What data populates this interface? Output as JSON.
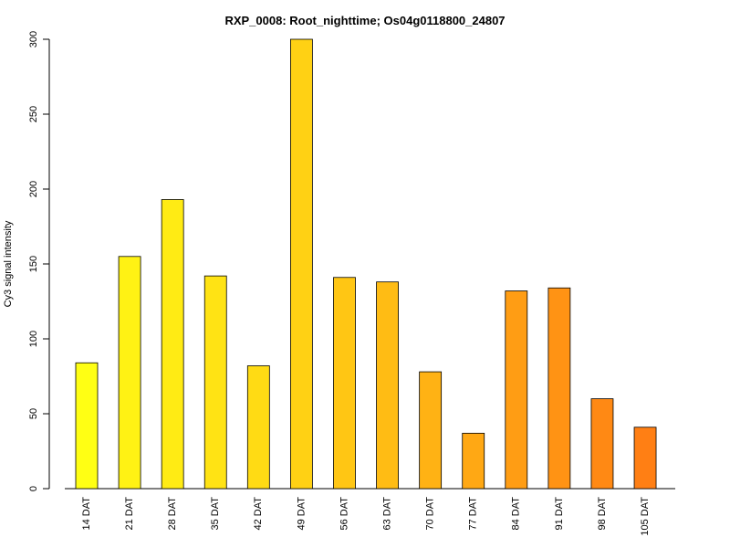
{
  "chart_data": {
    "type": "bar",
    "title": "RXP_0008: Root_nighttime; Os04g0118800_24807",
    "xlabel": "",
    "ylabel": "Cy3 signal intensity",
    "ylim": [
      0,
      300
    ],
    "yticks": [
      0,
      50,
      100,
      150,
      200,
      250,
      300
    ],
    "categories": [
      "14 DAT",
      "21 DAT",
      "28 DAT",
      "35 DAT",
      "42 DAT",
      "49 DAT",
      "56 DAT",
      "63 DAT",
      "70 DAT",
      "77 DAT",
      "84 DAT",
      "91 DAT",
      "98 DAT",
      "105 DAT"
    ],
    "values": [
      84,
      155,
      193,
      142,
      82,
      300,
      141,
      138,
      78,
      37,
      132,
      134,
      60,
      41
    ],
    "colors": [
      "#FFFF14",
      "#FFF214",
      "#FFEB14",
      "#FFE314",
      "#FFDB14",
      "#FFD114",
      "#FFC614",
      "#FFBC14",
      "#FFB214",
      "#FFA814",
      "#FF9D14",
      "#FF9314",
      "#FF8914",
      "#FF7F14"
    ],
    "grid": false,
    "legend": "none"
  }
}
